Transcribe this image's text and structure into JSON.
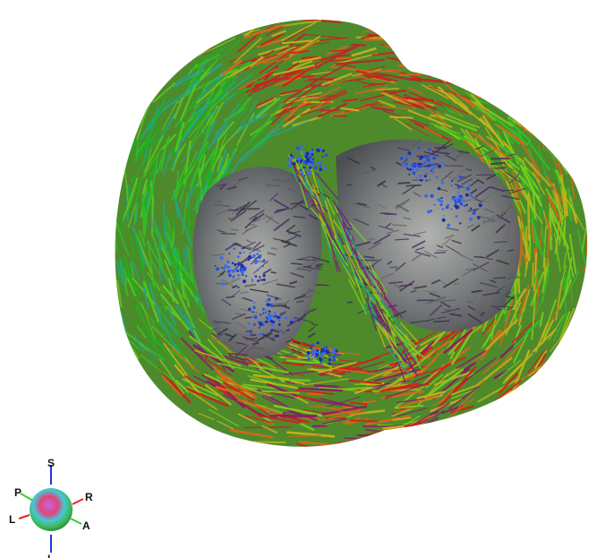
{
  "viewer": {
    "background": "#ffffff",
    "rendering": "heart-fiber-tractography",
    "orientation_widget": {
      "labels": {
        "superior": "S",
        "inferior": "I",
        "posterior": "P",
        "anterior": "A",
        "left": "L",
        "right": "R"
      },
      "axis_colors": {
        "superior_inferior": "#2233ee",
        "posterior_anterior": "#33cc33",
        "left_right": "#ee2222"
      }
    },
    "fiber_colors": [
      "#1fb01f",
      "#7ccf1a",
      "#c8b21a",
      "#e0641a",
      "#d0201a",
      "#8a1a6a",
      "#2a4fd8",
      "#23a58c"
    ]
  }
}
